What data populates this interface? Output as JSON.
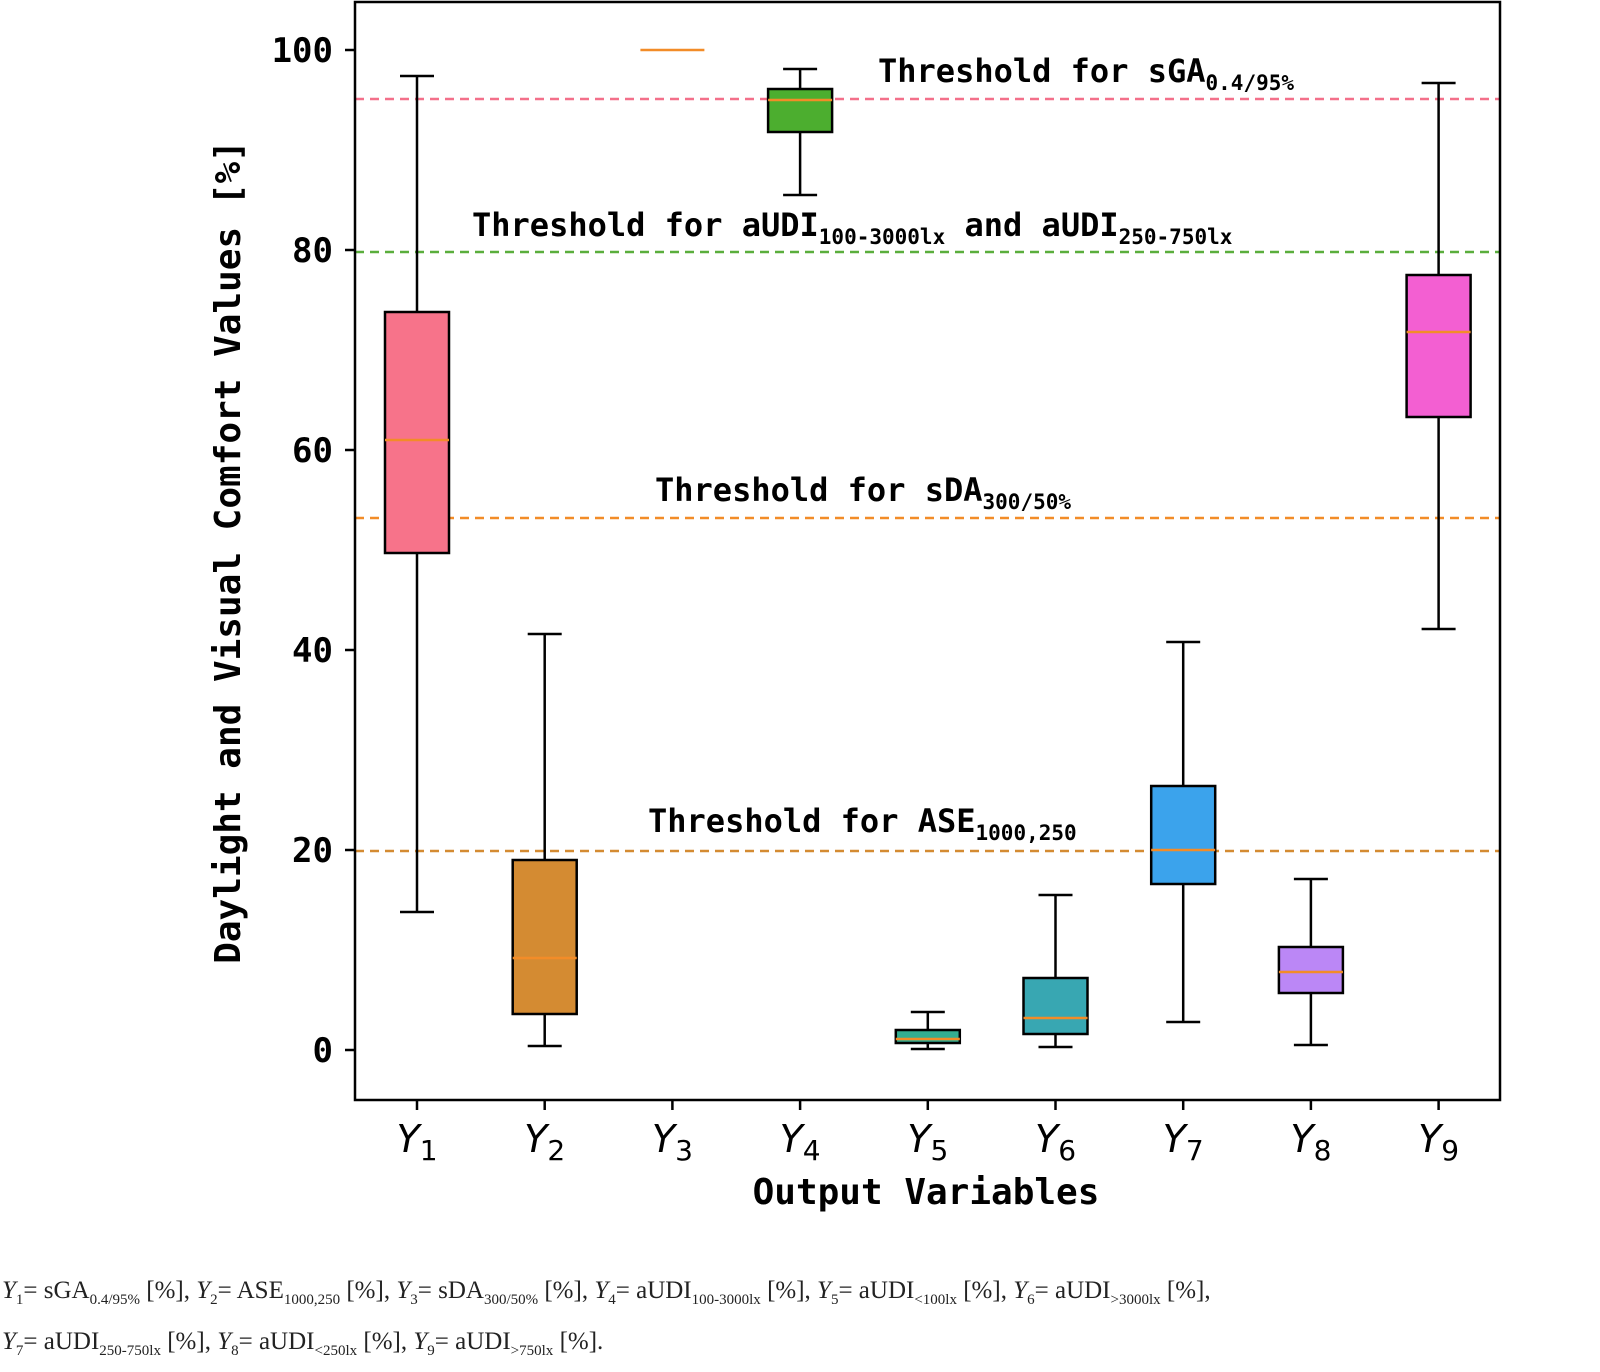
{
  "chart_data": {
    "type": "box",
    "xlabel": "Output Variables",
    "ylabel": "Daylight and Visual Comfort Values [%]",
    "ylim": [
      -5,
      105
    ],
    "yticks": [
      0,
      20,
      40,
      60,
      80,
      100
    ],
    "grid": false,
    "categories": [
      {
        "base": "Y",
        "sub": "1"
      },
      {
        "base": "Y",
        "sub": "2"
      },
      {
        "base": "Y",
        "sub": "3"
      },
      {
        "base": "Y",
        "sub": "4"
      },
      {
        "base": "Y",
        "sub": "5"
      },
      {
        "base": "Y",
        "sub": "6"
      },
      {
        "base": "Y",
        "sub": "7"
      },
      {
        "base": "Y",
        "sub": "8"
      },
      {
        "base": "Y",
        "sub": "9"
      }
    ],
    "boxes": [
      {
        "min": 13.8,
        "q1": 49.7,
        "median": 61.0,
        "q3": 73.8,
        "max": 97.4,
        "color": "#f7738a"
      },
      {
        "min": 0.4,
        "q1": 3.6,
        "median": 9.2,
        "q3": 19.0,
        "max": 41.6,
        "color": "#d48b32"
      },
      {
        "min": 100,
        "q1": 100,
        "median": 100,
        "q3": 100,
        "max": 100,
        "color": "#a8a33a"
      },
      {
        "min": 85.5,
        "q1": 91.8,
        "median": 95.0,
        "q3": 96.1,
        "max": 98.1,
        "color": "#4cae2f"
      },
      {
        "min": 0.1,
        "q1": 0.7,
        "median": 1.1,
        "q3": 2.0,
        "max": 3.8,
        "color": "#34ae91"
      },
      {
        "min": 0.3,
        "q1": 1.6,
        "median": 3.2,
        "q3": 7.2,
        "max": 15.5,
        "color": "#38a7b2"
      },
      {
        "min": 2.8,
        "q1": 16.6,
        "median": 20.0,
        "q3": 26.4,
        "max": 40.8,
        "color": "#3ba3ec"
      },
      {
        "min": 0.5,
        "q1": 5.7,
        "median": 7.8,
        "q3": 10.3,
        "max": 17.1,
        "color": "#bb87f6"
      },
      {
        "min": 42.1,
        "q1": 63.3,
        "median": 71.8,
        "q3": 77.5,
        "max": 96.7,
        "color": "#f35fd2"
      }
    ],
    "median_color": "#f28c28",
    "thresholds": [
      {
        "value": 95.1,
        "color": "#f3708a",
        "label": {
          "pre": "Threshold for sGA",
          "sub": "0.4/95%"
        }
      },
      {
        "value": 79.8,
        "color": "#5aae3c",
        "label": {
          "pre": "Threshold for aUDI",
          "sub": "100-3000lx",
          "mid": " and aUDI",
          "sub2": "250-750lx"
        }
      },
      {
        "value": 53.2,
        "color": "#f28c28",
        "label": {
          "pre": "Threshold for sDA",
          "sub": "300/50%"
        }
      },
      {
        "value": 19.9,
        "color": "#d48b32",
        "label": {
          "pre": "Threshold for ASE",
          "sub": "1000,250"
        }
      }
    ]
  },
  "caption": {
    "line1": [
      {
        "v": "Y",
        "s": "1",
        "t": "= sGA",
        "ts": "0.4/95%",
        "u": " [%], "
      },
      {
        "v": "Y",
        "s": "2",
        "t": "= ASE",
        "ts": "1000,250",
        "u": " [%], "
      },
      {
        "v": "Y",
        "s": "3",
        "t": "= sDA",
        "ts": "300/50%",
        "u": " [%], "
      },
      {
        "v": "Y",
        "s": "4",
        "t": "= aUDI",
        "ts": "100-3000lx",
        "u": " [%], "
      },
      {
        "v": "Y",
        "s": "5",
        "t": "= aUDI",
        "ts": "<100lx",
        "u": "  [%], "
      },
      {
        "v": "Y",
        "s": "6",
        "t": "= aUDI",
        "ts": ">3000lx",
        "u": "  [%],"
      }
    ],
    "line2": [
      {
        "v": "Y",
        "s": "7",
        "t": "= aUDI",
        "ts": "250-750lx",
        "u": " [%], "
      },
      {
        "v": "Y",
        "s": "8",
        "t": "= aUDI",
        "ts": "<250lx",
        "u": "  [%], "
      },
      {
        "v": "Y",
        "s": "9",
        "t": "= aUDI",
        "ts": ">750lx",
        "u": "  [%]."
      }
    ]
  }
}
